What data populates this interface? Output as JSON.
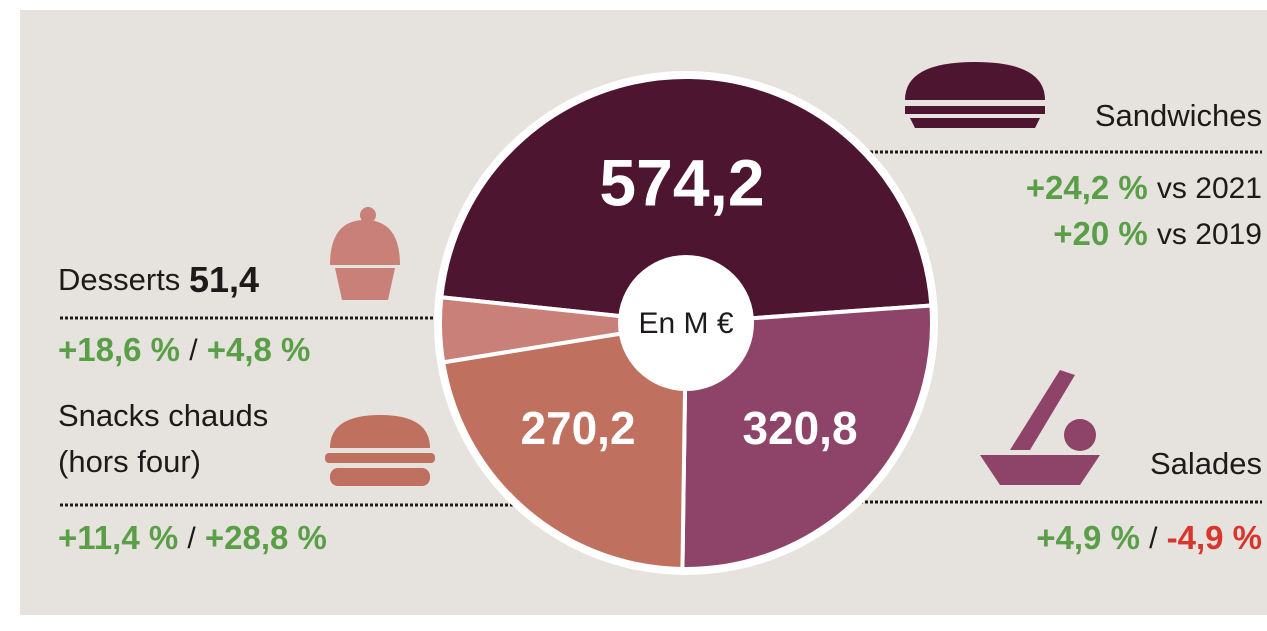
{
  "chart_data": {
    "type": "pie",
    "categories": [
      "Sandwiches",
      "Salades",
      "Snacks chauds (hors four)",
      "Desserts"
    ],
    "values": [
      574.2,
      320.8,
      270.2,
      51.4
    ],
    "value_labels": [
      "574,2",
      "320,8",
      "270,2",
      "51,4"
    ],
    "colors": [
      "#4e1530",
      "#8e4468",
      "#c0705e",
      "#c98078"
    ],
    "center_label": "En M €",
    "changes": [
      [
        "+24,2 %",
        "vs 2021",
        "+20 %",
        "vs 2019"
      ],
      [
        "+4,9 %",
        "/",
        "-4,9 %"
      ],
      [
        "+11,4 %",
        "/",
        "+28,8 %"
      ],
      [
        "+18,6 %",
        "/",
        "+4,8 %"
      ]
    ],
    "positive_color": "#5a9e48",
    "negative_color": "#d8352c"
  }
}
